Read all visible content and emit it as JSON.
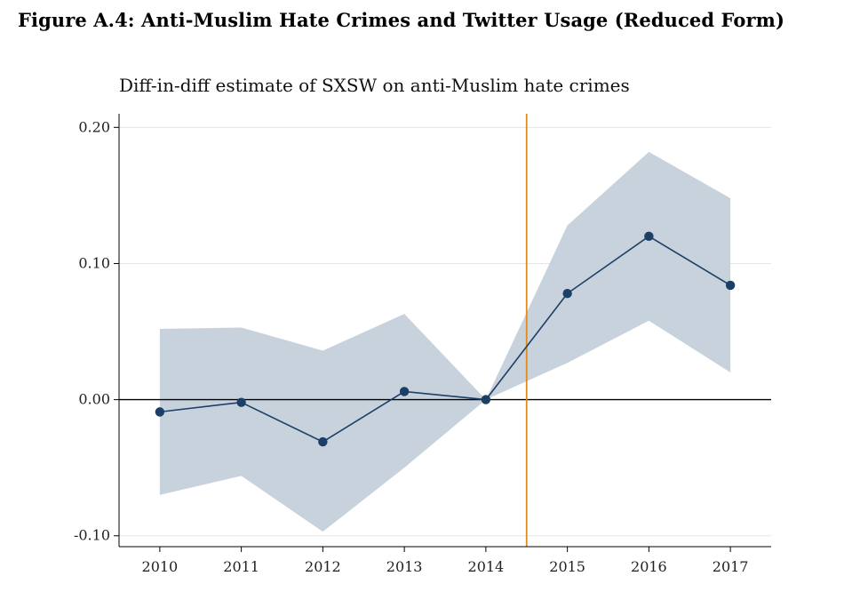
{
  "figure": {
    "title": "Figure A.4: Anti-Muslim Hate Crimes and Twitter Usage (Reduced Form)"
  },
  "chart_data": {
    "type": "line",
    "title": "Diff-in-diff estimate of SXSW on anti-Muslim hate crimes",
    "xlabel": "",
    "ylabel": "",
    "x": [
      2010,
      2011,
      2012,
      2013,
      2014,
      2015,
      2016,
      2017
    ],
    "x_tick_labels": [
      "2010",
      "2011",
      "2012",
      "2013",
      "2014",
      "2015",
      "2016",
      "2017"
    ],
    "xlim": [
      2009.5,
      2017.5
    ],
    "ylim": [
      -0.108,
      0.21
    ],
    "y_ticks": [
      0.2,
      0.1,
      0.0,
      -0.1
    ],
    "y_tick_labels": [
      "0.20",
      "0.10",
      "0.00",
      "-0.10"
    ],
    "series": [
      {
        "values": [
          -0.009,
          -0.002,
          -0.031,
          0.006,
          0.0,
          0.078,
          0.12,
          0.084
        ],
        "ci_lower": [
          -0.07,
          -0.056,
          -0.097,
          -0.05,
          0.0,
          0.027,
          0.058,
          0.02
        ],
        "ci_upper": [
          0.052,
          0.053,
          0.036,
          0.063,
          0.0,
          0.128,
          0.182,
          0.148
        ]
      }
    ],
    "reference_lines": {
      "horizontal_y": 0.0,
      "vertical_x": 2014.5
    },
    "grid": true,
    "colors": {
      "line": "#1b3f66",
      "marker": "#1b3f66",
      "ci_band": "#c8d2dd",
      "vertical_line": "#e08a1e",
      "zero_line": "#000000",
      "grid": "#e6e6e6"
    }
  }
}
